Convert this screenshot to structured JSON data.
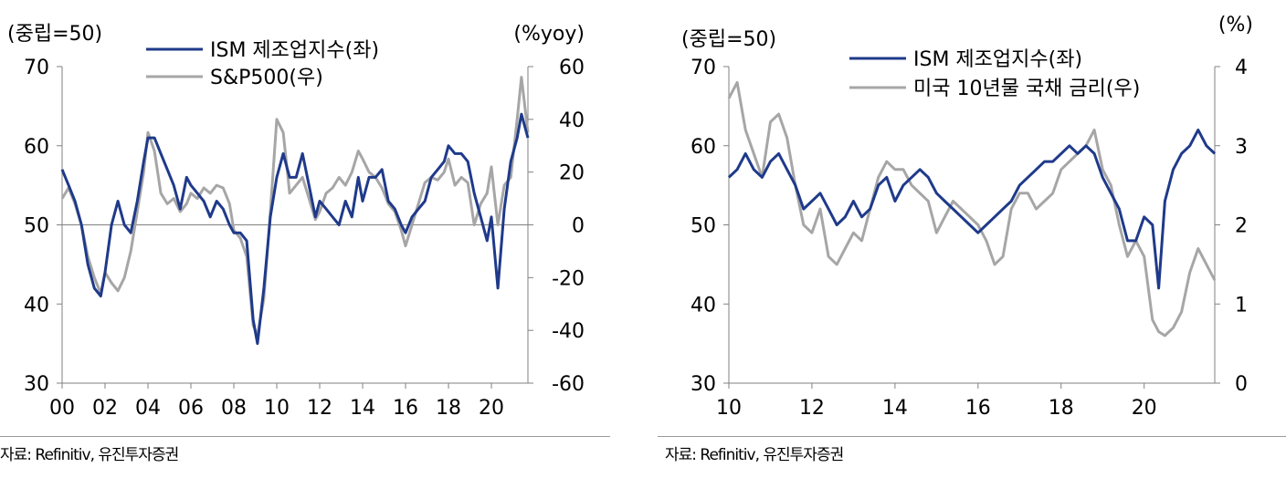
{
  "chart_data": [
    {
      "type": "line",
      "left_unit": "(중립=50)",
      "right_unit": "(%yoy)",
      "left_ylim": [
        30,
        70
      ],
      "right_ylim": [
        -60,
        60
      ],
      "left_ticks": [
        "70",
        "60",
        "50",
        "40",
        "30"
      ],
      "right_ticks": [
        "60",
        "40",
        "20",
        "0",
        "-20",
        "-40",
        "-60"
      ],
      "x_ticks": [
        "00",
        "02",
        "04",
        "06",
        "08",
        "10",
        "12",
        "14",
        "16",
        "18",
        "20"
      ],
      "x_range": [
        2000,
        2021.7
      ],
      "legend_placement": "top-center",
      "zero_line_right": 0,
      "source": "자료: Refinitiv, 유진투자증권",
      "series": [
        {
          "name": "ISM 제조업지수(좌)",
          "axis": "left",
          "color": "#1f3a8a",
          "x": [
            2000,
            2000.3,
            2000.6,
            2000.9,
            2001.2,
            2001.5,
            2001.8,
            2002.0,
            2002.3,
            2002.6,
            2002.9,
            2003.2,
            2003.5,
            2003.8,
            2004.0,
            2004.3,
            2004.6,
            2004.9,
            2005.2,
            2005.5,
            2005.8,
            2006.0,
            2006.3,
            2006.6,
            2006.9,
            2007.2,
            2007.5,
            2007.8,
            2008.0,
            2008.3,
            2008.6,
            2008.9,
            2009.1,
            2009.4,
            2009.7,
            2010.0,
            2010.3,
            2010.6,
            2010.9,
            2011.2,
            2011.5,
            2011.8,
            2012.0,
            2012.3,
            2012.6,
            2012.9,
            2013.2,
            2013.5,
            2013.8,
            2014.0,
            2014.3,
            2014.6,
            2014.9,
            2015.2,
            2015.5,
            2015.8,
            2016.0,
            2016.3,
            2016.6,
            2016.9,
            2017.2,
            2017.5,
            2017.8,
            2018.0,
            2018.3,
            2018.6,
            2018.9,
            2019.2,
            2019.5,
            2019.8,
            2020.0,
            2020.3,
            2020.6,
            2020.9,
            2021.2,
            2021.4,
            2021.7
          ],
          "values": [
            57,
            55,
            53,
            50,
            45,
            42,
            41,
            44,
            50,
            53,
            50,
            49,
            53,
            58,
            61,
            61,
            59,
            57,
            55,
            52,
            56,
            55,
            54,
            53,
            51,
            53,
            52,
            50,
            49,
            49,
            48,
            38,
            35,
            42,
            51,
            56,
            59,
            56,
            56,
            59,
            55,
            51,
            53,
            52,
            51,
            50,
            53,
            51,
            56,
            53,
            56,
            56,
            57,
            53,
            52,
            50,
            49,
            51,
            52,
            53,
            56,
            57,
            58,
            60,
            59,
            59,
            58,
            54,
            51,
            48,
            51,
            42,
            52,
            58,
            61,
            64,
            61
          ]
        },
        {
          "name": "S&P500(우)",
          "axis": "right",
          "color": "#a6a6a6",
          "x": [
            2000,
            2000.3,
            2000.6,
            2000.9,
            2001.2,
            2001.5,
            2001.8,
            2002.0,
            2002.3,
            2002.6,
            2002.9,
            2003.2,
            2003.5,
            2003.8,
            2004.0,
            2004.3,
            2004.6,
            2004.9,
            2005.2,
            2005.5,
            2005.8,
            2006.0,
            2006.3,
            2006.6,
            2006.9,
            2007.2,
            2007.5,
            2007.8,
            2008.0,
            2008.3,
            2008.6,
            2008.9,
            2009.1,
            2009.4,
            2009.7,
            2010.0,
            2010.3,
            2010.6,
            2010.9,
            2011.2,
            2011.5,
            2011.8,
            2012.0,
            2012.3,
            2012.6,
            2012.9,
            2013.2,
            2013.5,
            2013.8,
            2014.0,
            2014.3,
            2014.6,
            2014.9,
            2015.2,
            2015.5,
            2015.8,
            2016.0,
            2016.3,
            2016.6,
            2016.9,
            2017.2,
            2017.5,
            2017.8,
            2018.0,
            2018.3,
            2018.6,
            2018.9,
            2019.2,
            2019.5,
            2019.8,
            2020.0,
            2020.3,
            2020.6,
            2020.9,
            2021.2,
            2021.4,
            2021.7
          ],
          "values": [
            10,
            14,
            8,
            0,
            -12,
            -20,
            -26,
            -18,
            -22,
            -25,
            -20,
            -10,
            5,
            20,
            35,
            28,
            12,
            8,
            10,
            5,
            8,
            12,
            10,
            14,
            12,
            15,
            14,
            8,
            -2,
            -5,
            -12,
            -38,
            -42,
            -28,
            5,
            40,
            35,
            12,
            15,
            18,
            10,
            2,
            5,
            12,
            14,
            18,
            15,
            20,
            28,
            25,
            20,
            18,
            14,
            8,
            5,
            -2,
            -8,
            0,
            8,
            16,
            18,
            17,
            20,
            25,
            15,
            18,
            16,
            0,
            8,
            12,
            22,
            0,
            15,
            18,
            40,
            56,
            35
          ]
        }
      ]
    },
    {
      "type": "line",
      "left_unit": "(중립=50)",
      "right_unit": "(%)",
      "left_ylim": [
        30,
        70
      ],
      "right_ylim": [
        0,
        4
      ],
      "left_ticks": [
        "70",
        "60",
        "50",
        "40",
        "30"
      ],
      "right_ticks": [
        "4",
        "3",
        "2",
        "1",
        "0"
      ],
      "x_ticks": [
        "10",
        "12",
        "14",
        "16",
        "18",
        "20"
      ],
      "x_range": [
        2010,
        2021.7
      ],
      "legend_placement": "top-center",
      "source": "자료: Refinitiv, 유진투자증권",
      "series": [
        {
          "name": "ISM 제조업지수(좌)",
          "axis": "left",
          "color": "#1f3a8a",
          "x": [
            2010,
            2010.2,
            2010.4,
            2010.6,
            2010.8,
            2011.0,
            2011.2,
            2011.4,
            2011.6,
            2011.8,
            2012.0,
            2012.2,
            2012.4,
            2012.6,
            2012.8,
            2013.0,
            2013.2,
            2013.4,
            2013.6,
            2013.8,
            2014.0,
            2014.2,
            2014.4,
            2014.6,
            2014.8,
            2015.0,
            2015.2,
            2015.4,
            2015.6,
            2015.8,
            2016.0,
            2016.2,
            2016.4,
            2016.6,
            2016.8,
            2017.0,
            2017.2,
            2017.4,
            2017.6,
            2017.8,
            2018.0,
            2018.2,
            2018.4,
            2018.6,
            2018.8,
            2019.0,
            2019.2,
            2019.4,
            2019.6,
            2019.8,
            2020.0,
            2020.2,
            2020.35,
            2020.5,
            2020.7,
            2020.9,
            2021.1,
            2021.3,
            2021.5,
            2021.7
          ],
          "values": [
            56,
            57,
            59,
            57,
            56,
            58,
            59,
            57,
            55,
            52,
            53,
            54,
            52,
            50,
            51,
            53,
            51,
            52,
            55,
            56,
            53,
            55,
            56,
            57,
            56,
            54,
            53,
            52,
            51,
            50,
            49,
            50,
            51,
            52,
            53,
            55,
            56,
            57,
            58,
            58,
            59,
            60,
            59,
            60,
            59,
            56,
            54,
            52,
            48,
            48,
            51,
            50,
            42,
            53,
            57,
            59,
            60,
            62,
            60,
            59
          ]
        },
        {
          "name": "미국 10년물 국채 금리(우)",
          "axis": "right",
          "color": "#a6a6a6",
          "x": [
            2010,
            2010.2,
            2010.4,
            2010.6,
            2010.8,
            2011.0,
            2011.2,
            2011.4,
            2011.6,
            2011.8,
            2012.0,
            2012.2,
            2012.4,
            2012.6,
            2012.8,
            2013.0,
            2013.2,
            2013.4,
            2013.6,
            2013.8,
            2014.0,
            2014.2,
            2014.4,
            2014.6,
            2014.8,
            2015.0,
            2015.2,
            2015.4,
            2015.6,
            2015.8,
            2016.0,
            2016.2,
            2016.4,
            2016.6,
            2016.8,
            2017.0,
            2017.2,
            2017.4,
            2017.6,
            2017.8,
            2018.0,
            2018.2,
            2018.4,
            2018.6,
            2018.8,
            2019.0,
            2019.2,
            2019.4,
            2019.6,
            2019.8,
            2020.0,
            2020.2,
            2020.35,
            2020.5,
            2020.7,
            2020.9,
            2021.1,
            2021.3,
            2021.5,
            2021.7
          ],
          "values": [
            3.6,
            3.8,
            3.2,
            2.9,
            2.6,
            3.3,
            3.4,
            3.1,
            2.5,
            2.0,
            1.9,
            2.2,
            1.6,
            1.5,
            1.7,
            1.9,
            1.8,
            2.2,
            2.6,
            2.8,
            2.7,
            2.7,
            2.5,
            2.4,
            2.3,
            1.9,
            2.1,
            2.3,
            2.2,
            2.1,
            2.0,
            1.8,
            1.5,
            1.6,
            2.2,
            2.4,
            2.4,
            2.2,
            2.3,
            2.4,
            2.7,
            2.8,
            2.9,
            3.0,
            3.2,
            2.7,
            2.5,
            2.0,
            1.6,
            1.8,
            1.6,
            0.8,
            0.65,
            0.6,
            0.7,
            0.9,
            1.4,
            1.7,
            1.5,
            1.3
          ]
        }
      ]
    }
  ]
}
